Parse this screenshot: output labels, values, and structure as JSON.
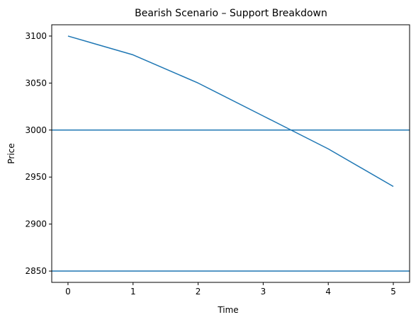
{
  "chart_data": {
    "type": "line",
    "title": "Bearish Scenario – Support Breakdown",
    "xlabel": "Time",
    "ylabel": "Price",
    "x": [
      0,
      1,
      2,
      3,
      4,
      5
    ],
    "series": [
      {
        "values": [
          3100,
          3080,
          3050,
          3015,
          2980,
          2940
        ]
      }
    ],
    "horizontal_lines": [
      3000,
      2850
    ],
    "xlim": [
      -0.25,
      5.25
    ],
    "ylim": [
      2838,
      3112
    ],
    "xticks": [
      "0",
      "1",
      "2",
      "3",
      "4",
      "5"
    ],
    "yticks": [
      "2850",
      "2900",
      "2950",
      "3000",
      "3050",
      "3100"
    ],
    "grid": false,
    "legend": "none",
    "line_color": "#1f77b4"
  }
}
